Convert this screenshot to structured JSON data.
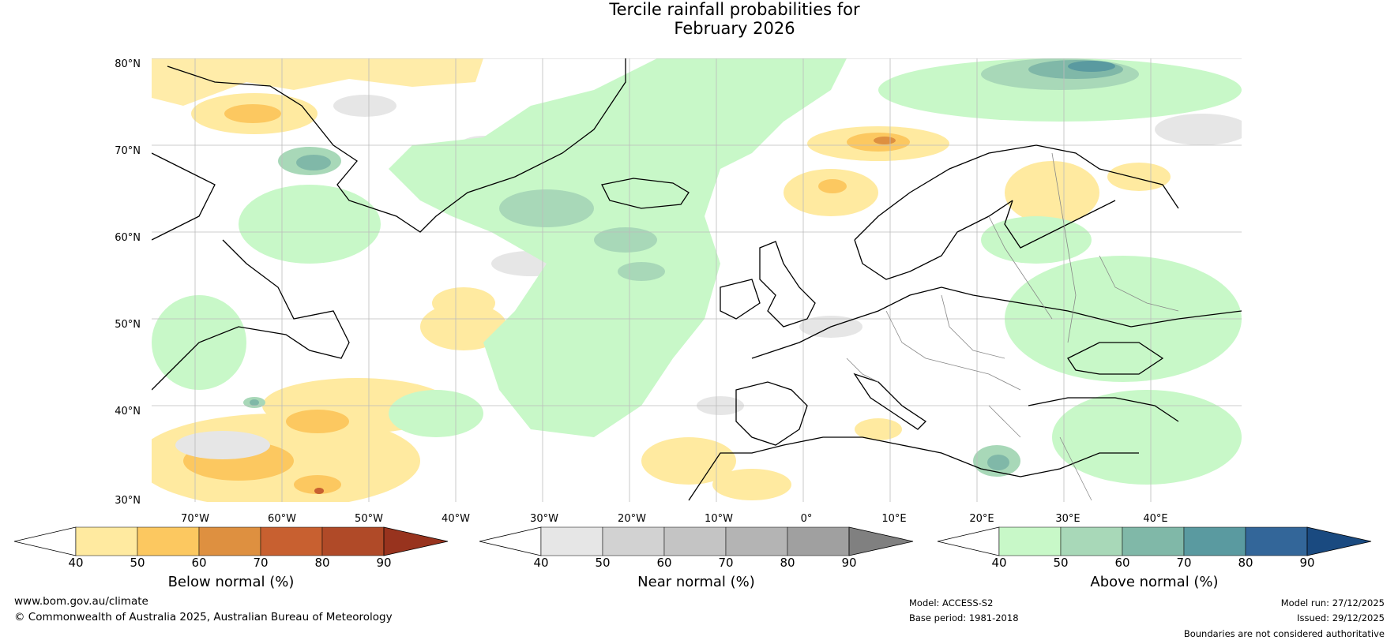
{
  "title": {
    "line1": "Tercile rainfall probabilities for",
    "line2": "February 2026"
  },
  "map": {
    "latitude_labels": [
      "80°N",
      "70°N",
      "60°N",
      "50°N",
      "40°N",
      "30°N"
    ],
    "longitude_labels": [
      "70°W",
      "60°W",
      "50°W",
      "40°W",
      "30°W",
      "20°W",
      "10°W",
      "0°",
      "10°E",
      "20°E",
      "30°E",
      "40°E"
    ],
    "colors": {
      "below_40": "#ffeaa0",
      "below_50": "#fcc860",
      "below_60": "#de9040",
      "below_70": "#c86030",
      "near_40": "#e6e6e6",
      "near_50": "#d2d2d2",
      "above_40": "#c8f8c8",
      "above_50": "#a8d8b8",
      "above_60": "#80b8a8",
      "above_70": "#5a9aa0"
    }
  },
  "colorbars": {
    "below": {
      "title": "Below normal (%)",
      "ticks": [
        "40",
        "50",
        "60",
        "70",
        "80",
        "90"
      ],
      "colors": [
        "#ffffff",
        "#ffeaa0",
        "#fcc860",
        "#de9040",
        "#c86030",
        "#b04a28",
        "#98331e"
      ]
    },
    "near": {
      "title": "Near normal (%)",
      "ticks": [
        "40",
        "50",
        "60",
        "70",
        "80",
        "90"
      ],
      "colors": [
        "#ffffff",
        "#e6e6e6",
        "#d2d2d2",
        "#c4c4c4",
        "#b4b4b4",
        "#a0a0a0",
        "#808080"
      ]
    },
    "above": {
      "title": "Above normal (%)",
      "ticks": [
        "40",
        "50",
        "60",
        "70",
        "80",
        "90"
      ],
      "colors": [
        "#ffffff",
        "#c8f8c8",
        "#a8d8b8",
        "#80b8a8",
        "#5a9aa0",
        "#336699",
        "#1a4a80"
      ]
    }
  },
  "footer": {
    "website": "www.bom.gov.au/climate",
    "copyright": "© Commonwealth of Australia 2025, Australian Bureau of Meteorology",
    "model": "Model: ACCESS-S2",
    "base_period": "Base period: 1981-2018",
    "model_run": "Model run: 27/12/2025",
    "issued": "Issued: 29/12/2025",
    "disclaimer": "Boundaries are not considered authoritative"
  }
}
